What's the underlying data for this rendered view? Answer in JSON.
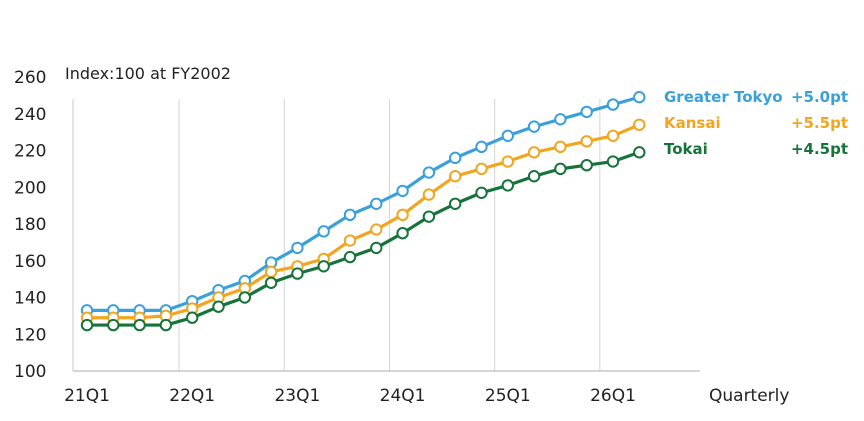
{
  "chart_data": {
    "type": "line",
    "title": "",
    "xlabel": "Quarterly",
    "ylabel": "",
    "note": "Index:100 at FY2002",
    "ylim": [
      100,
      260
    ],
    "yticks": [
      100,
      120,
      140,
      160,
      180,
      200,
      220,
      240,
      260
    ],
    "grid": "vertical lines at each year start",
    "legend_position": "right",
    "x": [
      "21Q1",
      "21Q2",
      "21Q3",
      "21Q4",
      "22Q1",
      "22Q2",
      "22Q3",
      "22Q4",
      "23Q1",
      "23Q2",
      "23Q3",
      "23Q4",
      "24Q1",
      "24Q2",
      "24Q3",
      "24Q4",
      "25Q1",
      "25Q2",
      "25Q3",
      "25Q4",
      "26Q1",
      "26Q2"
    ],
    "x_tick_labels": [
      "21Q1",
      "22Q1",
      "23Q1",
      "24Q1",
      "25Q1",
      "26Q1"
    ],
    "series": [
      {
        "name": "Greater Tokyo",
        "change": "+5.0pt",
        "color": "#3aa0db",
        "values": [
          133,
          133,
          133,
          133,
          138,
          144,
          149,
          159,
          167,
          176,
          185,
          191,
          198,
          208,
          216,
          222,
          228,
          233,
          237,
          241,
          245,
          249
        ]
      },
      {
        "name": "Kansai",
        "change": "+5.5pt",
        "color": "#f2a51f",
        "values": [
          129,
          129,
          129,
          130,
          134,
          140,
          145,
          154,
          157,
          161,
          171,
          177,
          185,
          196,
          206,
          210,
          214,
          219,
          222,
          225,
          228,
          234
        ]
      },
      {
        "name": "Tokai",
        "change": "+4.5pt",
        "color": "#16733a",
        "values": [
          125,
          125,
          125,
          125,
          129,
          135,
          140,
          148,
          153,
          157,
          162,
          167,
          175,
          184,
          191,
          197,
          201,
          206,
          210,
          212,
          214,
          219
        ]
      }
    ]
  }
}
